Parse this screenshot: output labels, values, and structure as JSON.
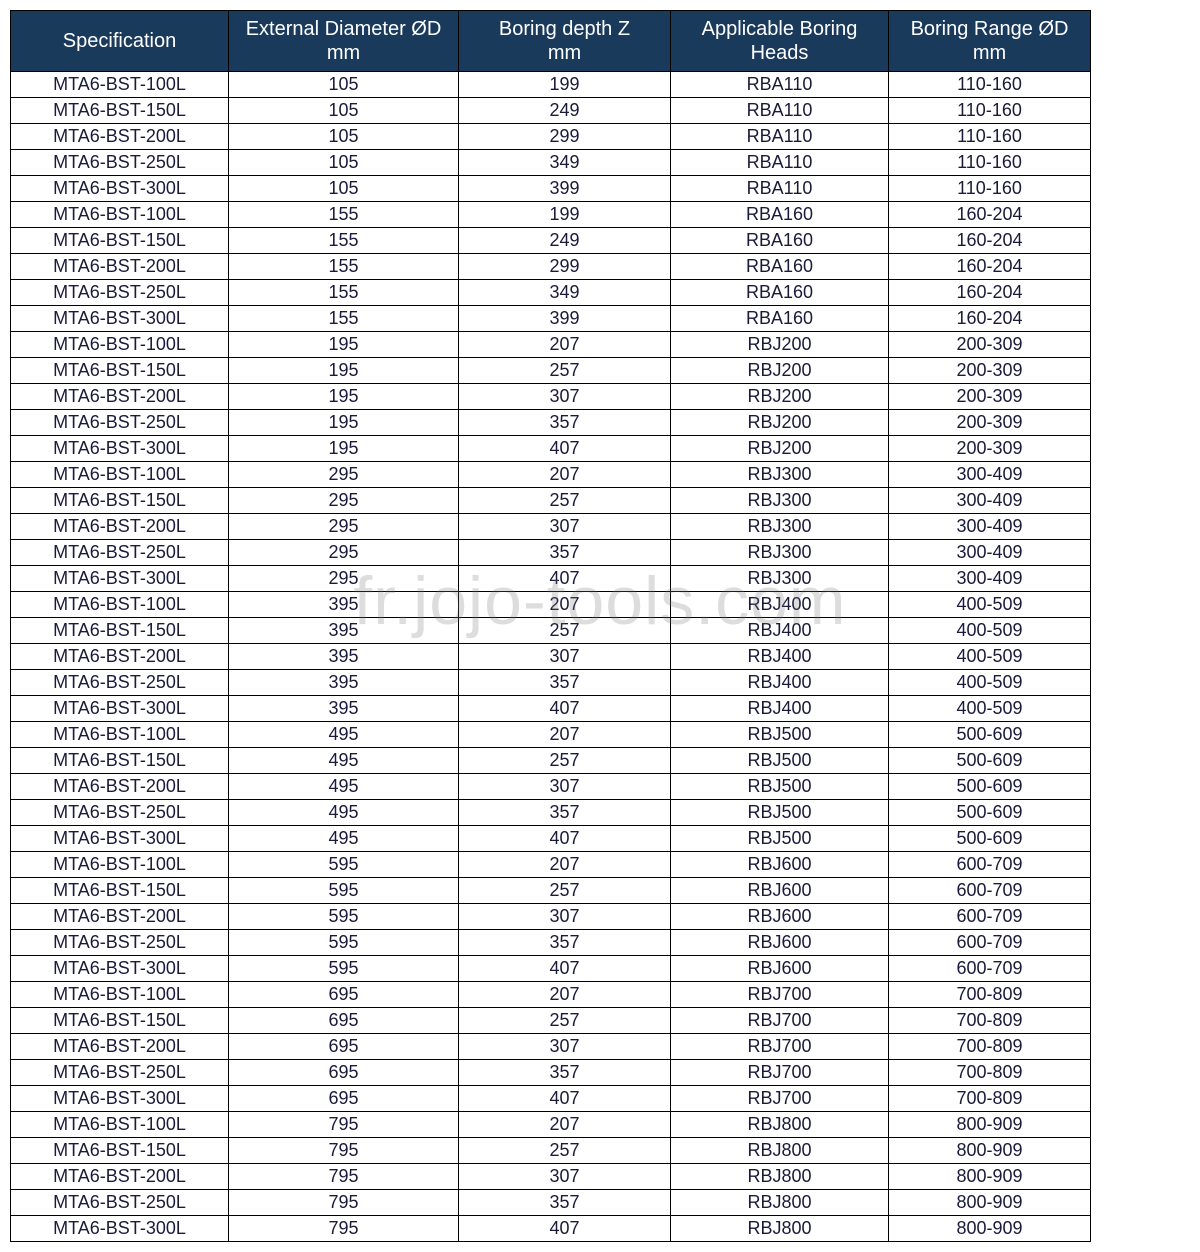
{
  "watermark": "fr.jojo-tools.com",
  "table": {
    "header_bg": "#1a3a5c",
    "header_fg": "#ffffff",
    "cell_fg": "#1a1a3a",
    "border_color": "#000000",
    "columns": [
      {
        "label_line1": "Specification",
        "label_line2": ""
      },
      {
        "label_line1": "External Diameter ØD",
        "label_line2": "mm"
      },
      {
        "label_line1": "Boring depth Z",
        "label_line2": "mm"
      },
      {
        "label_line1": "Applicable Boring",
        "label_line2": "Heads"
      },
      {
        "label_line1": "Boring Range ØD",
        "label_line2": "mm"
      }
    ],
    "rows": [
      [
        "MTA6-BST-100L",
        "105",
        "199",
        "RBA110",
        "110-160"
      ],
      [
        "MTA6-BST-150L",
        "105",
        "249",
        "RBA110",
        "110-160"
      ],
      [
        "MTA6-BST-200L",
        "105",
        "299",
        "RBA110",
        "110-160"
      ],
      [
        "MTA6-BST-250L",
        "105",
        "349",
        "RBA110",
        "110-160"
      ],
      [
        "MTA6-BST-300L",
        "105",
        "399",
        "RBA110",
        "110-160"
      ],
      [
        "MTA6-BST-100L",
        "155",
        "199",
        "RBA160",
        "160-204"
      ],
      [
        "MTA6-BST-150L",
        "155",
        "249",
        "RBA160",
        "160-204"
      ],
      [
        "MTA6-BST-200L",
        "155",
        "299",
        "RBA160",
        "160-204"
      ],
      [
        "MTA6-BST-250L",
        "155",
        "349",
        "RBA160",
        "160-204"
      ],
      [
        "MTA6-BST-300L",
        "155",
        "399",
        "RBA160",
        "160-204"
      ],
      [
        "MTA6-BST-100L",
        "195",
        "207",
        "RBJ200",
        "200-309"
      ],
      [
        "MTA6-BST-150L",
        "195",
        "257",
        "RBJ200",
        "200-309"
      ],
      [
        "MTA6-BST-200L",
        "195",
        "307",
        "RBJ200",
        "200-309"
      ],
      [
        "MTA6-BST-250L",
        "195",
        "357",
        "RBJ200",
        "200-309"
      ],
      [
        "MTA6-BST-300L",
        "195",
        "407",
        "RBJ200",
        "200-309"
      ],
      [
        "MTA6-BST-100L",
        "295",
        "207",
        "RBJ300",
        "300-409"
      ],
      [
        "MTA6-BST-150L",
        "295",
        "257",
        "RBJ300",
        "300-409"
      ],
      [
        "MTA6-BST-200L",
        "295",
        "307",
        "RBJ300",
        "300-409"
      ],
      [
        "MTA6-BST-250L",
        "295",
        "357",
        "RBJ300",
        "300-409"
      ],
      [
        "MTA6-BST-300L",
        "295",
        "407",
        "RBJ300",
        "300-409"
      ],
      [
        "MTA6-BST-100L",
        "395",
        "207",
        "RBJ400",
        "400-509"
      ],
      [
        "MTA6-BST-150L",
        "395",
        "257",
        "RBJ400",
        "400-509"
      ],
      [
        "MTA6-BST-200L",
        "395",
        "307",
        "RBJ400",
        "400-509"
      ],
      [
        "MTA6-BST-250L",
        "395",
        "357",
        "RBJ400",
        "400-509"
      ],
      [
        "MTA6-BST-300L",
        "395",
        "407",
        "RBJ400",
        "400-509"
      ],
      [
        "MTA6-BST-100L",
        "495",
        "207",
        "RBJ500",
        "500-609"
      ],
      [
        "MTA6-BST-150L",
        "495",
        "257",
        "RBJ500",
        "500-609"
      ],
      [
        "MTA6-BST-200L",
        "495",
        "307",
        "RBJ500",
        "500-609"
      ],
      [
        "MTA6-BST-250L",
        "495",
        "357",
        "RBJ500",
        "500-609"
      ],
      [
        "MTA6-BST-300L",
        "495",
        "407",
        "RBJ500",
        "500-609"
      ],
      [
        "MTA6-BST-100L",
        "595",
        "207",
        "RBJ600",
        "600-709"
      ],
      [
        "MTA6-BST-150L",
        "595",
        "257",
        "RBJ600",
        "600-709"
      ],
      [
        "MTA6-BST-200L",
        "595",
        "307",
        "RBJ600",
        "600-709"
      ],
      [
        "MTA6-BST-250L",
        "595",
        "357",
        "RBJ600",
        "600-709"
      ],
      [
        "MTA6-BST-300L",
        "595",
        "407",
        "RBJ600",
        "600-709"
      ],
      [
        "MTA6-BST-100L",
        "695",
        "207",
        "RBJ700",
        "700-809"
      ],
      [
        "MTA6-BST-150L",
        "695",
        "257",
        "RBJ700",
        "700-809"
      ],
      [
        "MTA6-BST-200L",
        "695",
        "307",
        "RBJ700",
        "700-809"
      ],
      [
        "MTA6-BST-250L",
        "695",
        "357",
        "RBJ700",
        "700-809"
      ],
      [
        "MTA6-BST-300L",
        "695",
        "407",
        "RBJ700",
        "700-809"
      ],
      [
        "MTA6-BST-100L",
        "795",
        "207",
        "RBJ800",
        "800-909"
      ],
      [
        "MTA6-BST-150L",
        "795",
        "257",
        "RBJ800",
        "800-909"
      ],
      [
        "MTA6-BST-200L",
        "795",
        "307",
        "RBJ800",
        "800-909"
      ],
      [
        "MTA6-BST-250L",
        "795",
        "357",
        "RBJ800",
        "800-909"
      ],
      [
        "MTA6-BST-300L",
        "795",
        "407",
        "RBJ800",
        "800-909"
      ]
    ]
  }
}
